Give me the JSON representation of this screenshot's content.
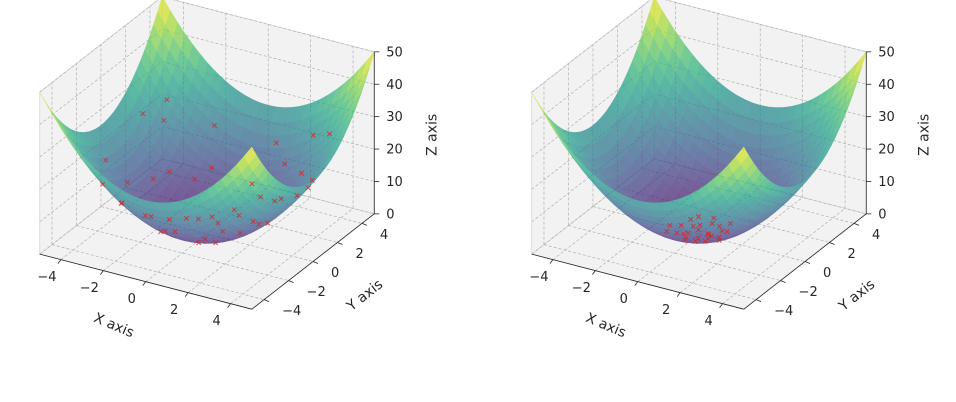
{
  "chart_data": [
    {
      "type": "surface3d",
      "surface": "z = x^2 + y^2",
      "colormap": "viridis",
      "xlabel": "X axis",
      "ylabel": "Y axis",
      "zlabel": "Z axis",
      "xlim": [
        -5,
        5
      ],
      "ylim": [
        -5,
        5
      ],
      "zlim": [
        0,
        50
      ],
      "xticks": [
        "−4",
        "−2",
        "0",
        "2",
        "4"
      ],
      "yticks": [
        "−4",
        "−2",
        "0",
        "2",
        "4"
      ],
      "zticks": [
        "0",
        "10",
        "20",
        "30",
        "40",
        "50"
      ],
      "scatter_color": "#d62728",
      "scatter_points": [
        [
          -3.6,
          2.7,
          21.0
        ],
        [
          3.3,
          -3.1,
          20.5
        ],
        [
          -2.2,
          -3.2,
          15.1
        ],
        [
          1.7,
          3.4,
          14.5
        ],
        [
          3.5,
          1.3,
          13.9
        ],
        [
          -3.4,
          -0.6,
          11.9
        ],
        [
          0.4,
          -3.3,
          11.1
        ],
        [
          -1.4,
          2.8,
          9.8
        ],
        [
          2.6,
          -1.8,
          10.0
        ],
        [
          -2.7,
          1.6,
          9.9
        ],
        [
          1.2,
          2.3,
          6.7
        ],
        [
          -0.8,
          -2.4,
          6.4
        ],
        [
          2.1,
          0.6,
          4.8
        ],
        [
          -2.0,
          -1.1,
          5.2
        ],
        [
          0.3,
          1.7,
          3.0
        ],
        [
          1.1,
          -1.2,
          2.7
        ],
        [
          -1.2,
          0.4,
          1.6
        ],
        [
          0.2,
          -0.5,
          0.3
        ],
        [
          4.1,
          1.5,
          19.1
        ],
        [
          -4.2,
          -1.0,
          18.6
        ],
        [
          0.9,
          4.1,
          17.6
        ],
        [
          -0.6,
          -4.0,
          16.4
        ],
        [
          2.9,
          2.7,
          15.7
        ],
        [
          -2.5,
          -2.6,
          13.0
        ],
        [
          3.1,
          -0.4,
          9.8
        ],
        [
          -1.8,
          2.1,
          7.7
        ],
        [
          0.7,
          -1.9,
          4.1
        ],
        [
          -0.4,
          1.1,
          1.4
        ],
        [
          1.6,
          1.0,
          3.6
        ],
        [
          -1.1,
          -1.5,
          3.5
        ],
        [
          2.3,
          -2.7,
          12.6
        ],
        [
          -3.0,
          0.8,
          9.6
        ],
        [
          4.4,
          -2.1,
          23.8
        ],
        [
          -3.8,
          3.3,
          25.3
        ],
        [
          1.9,
          -4.0,
          19.6
        ],
        [
          -2.9,
          -3.5,
          20.7
        ],
        [
          0.5,
          2.8,
          8.1
        ],
        [
          2.4,
          1.9,
          9.4
        ],
        [
          -1.6,
          -0.3,
          2.6
        ],
        [
          0.0,
          0.9,
          0.8
        ],
        [
          3.7,
          3.6,
          26.6
        ],
        [
          -4.3,
          2.2,
          23.4
        ],
        [
          2.7,
          4.0,
          23.3
        ],
        [
          -1.9,
          3.9,
          18.8
        ],
        [
          4.6,
          0.3,
          21.2
        ]
      ]
    },
    {
      "type": "surface3d",
      "surface": "z = x^2 + y^2",
      "colormap": "viridis",
      "xlabel": "X axis",
      "ylabel": "Y axis",
      "zlabel": "Z axis",
      "xlim": [
        -5,
        5
      ],
      "ylim": [
        -5,
        5
      ],
      "zlim": [
        0,
        50
      ],
      "xticks": [
        "−4",
        "−2",
        "0",
        "2",
        "4"
      ],
      "yticks": [
        "−4",
        "−2",
        "0",
        "2",
        "4"
      ],
      "zticks": [
        "0",
        "10",
        "20",
        "30",
        "40",
        "50"
      ],
      "scatter_color": "#d62728",
      "scatter_points": [
        [
          0.3,
          0.2,
          0.1
        ],
        [
          -0.5,
          0.4,
          0.4
        ],
        [
          0.6,
          -0.3,
          0.5
        ],
        [
          -0.2,
          -0.7,
          0.5
        ],
        [
          0.8,
          0.5,
          0.9
        ],
        [
          -0.9,
          0.1,
          0.8
        ],
        [
          0.1,
          0.9,
          0.8
        ],
        [
          -0.4,
          -0.2,
          0.2
        ],
        [
          0.5,
          0.8,
          0.9
        ],
        [
          -0.7,
          -0.6,
          0.9
        ],
        [
          1.0,
          -0.1,
          1.0
        ],
        [
          -0.1,
          -1.0,
          1.0
        ],
        [
          0.4,
          0.1,
          0.2
        ],
        [
          -0.3,
          0.6,
          0.5
        ],
        [
          0.7,
          -0.7,
          1.0
        ],
        [
          -0.8,
          0.7,
          1.1
        ],
        [
          0.2,
          -0.4,
          0.2
        ],
        [
          1.1,
          0.4,
          1.4
        ],
        [
          -1.2,
          -0.3,
          1.5
        ],
        [
          0.0,
          1.2,
          1.4
        ],
        [
          -0.6,
          1.0,
          1.4
        ],
        [
          0.9,
          1.0,
          1.8
        ],
        [
          -1.0,
          -0.9,
          1.8
        ],
        [
          1.3,
          -0.6,
          2.0
        ],
        [
          -0.2,
          0.3,
          0.1
        ],
        [
          0.6,
          0.0,
          0.4
        ],
        [
          -0.5,
          -0.4,
          0.4
        ],
        [
          0.3,
          -0.8,
          0.7
        ]
      ]
    }
  ]
}
